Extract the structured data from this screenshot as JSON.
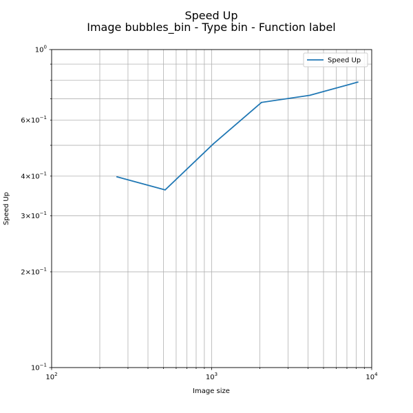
{
  "chart_data": {
    "type": "line",
    "title": "Speed Up",
    "subtitle": "Image bubbles_bin - Type bin - Function label",
    "xlabel": "Image size",
    "ylabel": "Speed Up",
    "x_scale": "log",
    "y_scale": "log",
    "xlim": [
      100,
      10000
    ],
    "ylim": [
      0.1,
      1.0
    ],
    "grid": true,
    "legend_position": "top-right",
    "x_tick_labels": [
      {
        "value": 100,
        "base": "10",
        "exp": "2"
      },
      {
        "value": 1000,
        "base": "10",
        "exp": "3"
      },
      {
        "value": 10000,
        "base": "10",
        "exp": "4"
      }
    ],
    "y_tick_labels": [
      {
        "value": 0.1,
        "mant": "",
        "base": "10",
        "exp": "−1"
      },
      {
        "value": 0.2,
        "mant": "2×",
        "base": "10",
        "exp": "−1"
      },
      {
        "value": 0.3,
        "mant": "3×",
        "base": "10",
        "exp": "−1"
      },
      {
        "value": 0.4,
        "mant": "4×",
        "base": "10",
        "exp": "−1"
      },
      {
        "value": 0.6,
        "mant": "6×",
        "base": "10",
        "exp": "−1"
      },
      {
        "value": 1.0,
        "mant": "",
        "base": "10",
        "exp": "0"
      }
    ],
    "series": [
      {
        "name": "Speed Up",
        "color": "#1f77b4",
        "x": [
          256,
          512,
          1024,
          2048,
          4096,
          8192
        ],
        "y": [
          0.398,
          0.362,
          0.505,
          0.682,
          0.718,
          0.79
        ]
      }
    ]
  }
}
